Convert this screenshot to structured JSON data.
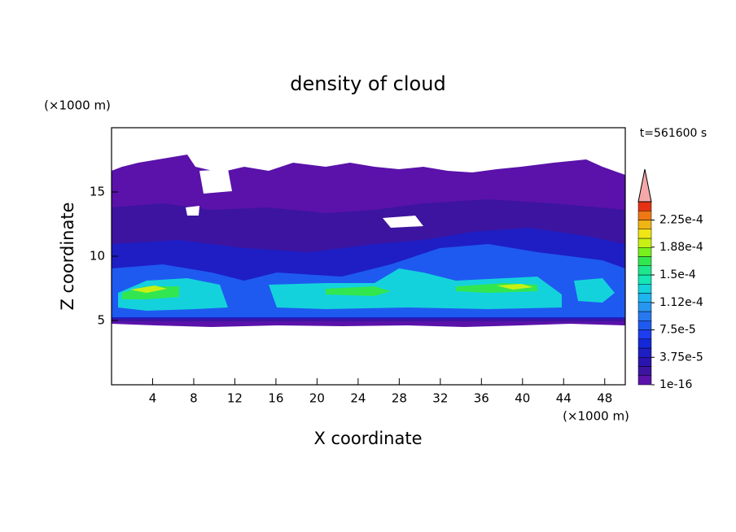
{
  "chart_data": {
    "type": "contour",
    "title": "density of cloud",
    "x_label": "X coordinate",
    "y_label": "Z coordinate",
    "x_unit": "(×1000 m)",
    "y_unit": "(×1000 m)",
    "time_label": "t=561600 s",
    "xlim": [
      0,
      50
    ],
    "xticks": [
      4,
      8,
      12,
      16,
      20,
      24,
      28,
      32,
      36,
      40,
      44,
      48
    ],
    "ylim": [
      0,
      20
    ],
    "yticks": [
      5,
      10,
      15
    ],
    "clim": [
      1e-16,
      0.00025
    ],
    "cticks": [
      {
        "value": 1e-16,
        "label": "1e-16"
      },
      {
        "value": 3.75e-05,
        "label": "3.75e-5"
      },
      {
        "value": 7.5e-05,
        "label": "7.5e-5"
      },
      {
        "value": 0.000112,
        "label": "1.12e-4"
      },
      {
        "value": 0.00015,
        "label": "1.5e-4"
      },
      {
        "value": 0.000188,
        "label": "1.88e-4"
      },
      {
        "value": 0.000225,
        "label": "2.25e-4"
      }
    ],
    "colors": [
      "#5a12aa",
      "#3c14a0",
      "#2a14b0",
      "#1e1ec4",
      "#1428d8",
      "#1e3cf0",
      "#1e5af0",
      "#2878f0",
      "#2896f0",
      "#1eb4f0",
      "#14d2dc",
      "#14e6b4",
      "#1ee68c",
      "#32e650",
      "#78f01e",
      "#c8f014",
      "#f0e614",
      "#f0b414",
      "#f07814",
      "#e63214"
    ],
    "over_color": "#f4a8a8"
  }
}
